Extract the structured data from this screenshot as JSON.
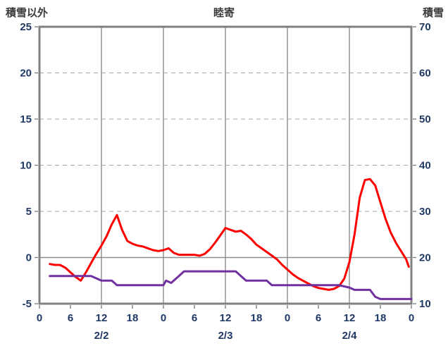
{
  "header": {
    "left_axis_title": "積雪以外",
    "chart_title": "睦寄",
    "right_axis_title": "積雪"
  },
  "chart_data": {
    "type": "line",
    "title": "睦寄",
    "left_axis": {
      "label": "積雪以外",
      "min": -5,
      "max": 25,
      "ticks": [
        25,
        20,
        15,
        10,
        5,
        0,
        -5
      ]
    },
    "right_axis": {
      "label": "積雪",
      "min": 10,
      "max": 70,
      "ticks": [
        70,
        60,
        50,
        40,
        30,
        20,
        10
      ]
    },
    "x_axis": {
      "min": 0,
      "max": 72,
      "tick_interval": 6,
      "tick_labels": [
        "0",
        "6",
        "12",
        "18",
        "0",
        "6",
        "12",
        "18",
        "0",
        "6",
        "12",
        "18",
        "0"
      ],
      "date_labels": [
        {
          "label": "2/2",
          "hour": 12
        },
        {
          "label": "2/3",
          "hour": 36
        },
        {
          "label": "2/4",
          "hour": 60
        }
      ],
      "v_gridline_interval_hours": 12
    },
    "grid": {
      "dashed_color": "#A6A6A6",
      "solid_color": "#8C8C8C",
      "frame_color": "#808080"
    },
    "series": [
      {
        "name": "left-axis-series",
        "label": "積雪以外",
        "color": "#FF0000",
        "axis": "left",
        "points": [
          [
            2,
            -0.7
          ],
          [
            3,
            -0.8
          ],
          [
            4,
            -0.8
          ],
          [
            5,
            -1.1
          ],
          [
            6,
            -1.6
          ],
          [
            7,
            -2.1
          ],
          [
            8,
            -2.5
          ],
          [
            9,
            -1.6
          ],
          [
            10,
            -0.6
          ],
          [
            11,
            0.4
          ],
          [
            12,
            1.3
          ],
          [
            13,
            2.3
          ],
          [
            14,
            3.6
          ],
          [
            15,
            4.6
          ],
          [
            16,
            3.0
          ],
          [
            17,
            1.8
          ],
          [
            18,
            1.5
          ],
          [
            19,
            1.3
          ],
          [
            20,
            1.2
          ],
          [
            21,
            1.0
          ],
          [
            22,
            0.8
          ],
          [
            23,
            0.7
          ],
          [
            24,
            0.8
          ],
          [
            25,
            1.0
          ],
          [
            26,
            0.5
          ],
          [
            27,
            0.3
          ],
          [
            28,
            0.3
          ],
          [
            29,
            0.3
          ],
          [
            30,
            0.3
          ],
          [
            31,
            0.2
          ],
          [
            32,
            0.4
          ],
          [
            33,
            0.9
          ],
          [
            34,
            1.6
          ],
          [
            35,
            2.4
          ],
          [
            36,
            3.2
          ],
          [
            37,
            3.0
          ],
          [
            38,
            2.8
          ],
          [
            39,
            2.9
          ],
          [
            40,
            2.5
          ],
          [
            41,
            2.0
          ],
          [
            42,
            1.4
          ],
          [
            43,
            1.0
          ],
          [
            44,
            0.6
          ],
          [
            45,
            0.2
          ],
          [
            46,
            -0.2
          ],
          [
            47,
            -0.8
          ],
          [
            48,
            -1.3
          ],
          [
            49,
            -1.8
          ],
          [
            50,
            -2.2
          ],
          [
            51,
            -2.5
          ],
          [
            52,
            -2.8
          ],
          [
            53,
            -3.1
          ],
          [
            54,
            -3.3
          ],
          [
            55,
            -3.4
          ],
          [
            56,
            -3.5
          ],
          [
            57,
            -3.4
          ],
          [
            58,
            -3.1
          ],
          [
            59,
            -2.3
          ],
          [
            60,
            -0.5
          ],
          [
            61,
            2.5
          ],
          [
            62,
            6.5
          ],
          [
            63,
            8.4
          ],
          [
            64,
            8.5
          ],
          [
            65,
            7.8
          ],
          [
            66,
            6.0
          ],
          [
            67,
            4.2
          ],
          [
            68,
            2.7
          ],
          [
            69,
            1.6
          ],
          [
            70,
            0.7
          ],
          [
            71,
            -0.2
          ],
          [
            71.5,
            -1.0
          ]
        ]
      },
      {
        "name": "right-axis-series",
        "label": "積雪",
        "color": "#7030A0",
        "axis": "right",
        "points": [
          [
            2,
            16
          ],
          [
            10,
            16
          ],
          [
            12,
            15
          ],
          [
            14,
            15
          ],
          [
            15,
            14
          ],
          [
            24,
            14
          ],
          [
            24.5,
            15
          ],
          [
            25.5,
            14.5
          ],
          [
            27,
            16
          ],
          [
            28,
            17
          ],
          [
            38,
            17
          ],
          [
            39,
            16
          ],
          [
            40,
            15
          ],
          [
            44,
            15
          ],
          [
            45,
            14
          ],
          [
            58,
            14
          ],
          [
            60,
            13.5
          ],
          [
            61,
            13
          ],
          [
            64,
            13
          ],
          [
            65,
            11.5
          ],
          [
            66,
            11
          ],
          [
            72,
            11
          ]
        ]
      }
    ]
  }
}
